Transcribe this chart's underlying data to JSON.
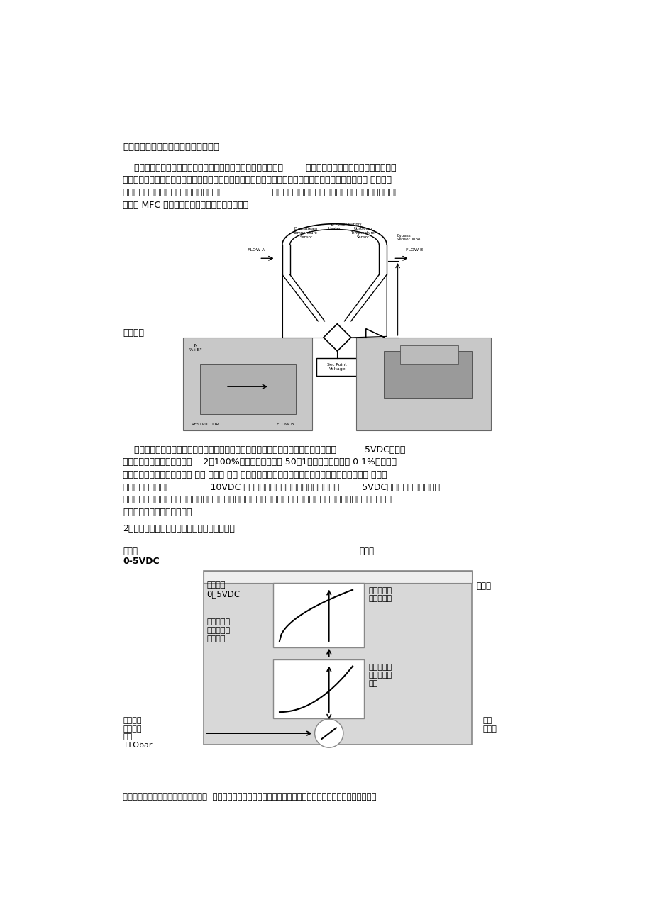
{
  "bg_color": "#ffffff",
  "title": "气体质量流量控制器和流量计工作原理",
  "para1_line1": "    流量传感器采用毛细管传热温差量热法原理测量气体的质量流量        （无需温度和压力补偿）。将传感器加",
  "para1_line2": "热电桥测得的流量信号送入放大器放大，放大后的流量测量电压与设定电压进行比较，再将差值信号放大 后去控制",
  "para1_line3": "调节阀，通过闭环控制来控制通过的流量，                 并使之与设定的流量相等。分流器决定主通道的流量。",
  "para1_line4": "左图为 MFC 和流量显示仪连接后的工作原理图：",
  "addr_line": "址栏里）",
  "para2_line1": "    控制器输出的流量检测到的电压与流过通道的气体质量成正比。满量程检测输出电压为          5VDC，气体",
  "para2_line2": "质量流量控制器的检测范围为    2～100%满刻度（量程比为 50：1），流量分辨率为 0.1%满刻度。",
  "para2_line3": "注意：气体质量流量控制器的 阀控 线置于 清洗 位时也可以当成气体质量流量计使用。这时，流量检测 输出电",
  "para2_line4": "压的输出值可能达到              10VDC 以上。需要注意的是，一旦输出电压超过        5VDC，流量检测电压和实际",
  "para2_line5": "通过的流量不成线性对应关系。清洗时，流量显示是不准确的，而且还可能出现流量增大、显示减小的现 象，但这",
  "para2_line6": "些不会损坏质量流量控制器。",
  "section2_title": "2、气体质量流量计和气体质量流量控制器结构",
  "label_setpoint": "设定点",
  "label_setpoint_val": "0-5VDC",
  "label_controller": "控制器",
  "label_amplifier": "放大器",
  "label_gain": "质益流益",
  "label_gain_val": "0－5VDC",
  "label_digital": "数字线性化\n和温度补偿\n（芯片）",
  "label_linear": "线性化和温\n度补偿信号",
  "label_raw": "从芯片传感\n器来的原始\n数据",
  "label_pressure": "输入压力\n最大环境\n压力\n+LObar",
  "label_flow_ctrl": "阀控\n心流二",
  "label_bottom": "（将该地址复制粘贴到网叶地址栏里）  气体质量流量计含流量传感器、分流器通道和流量放大、线性化及温度补偿"
}
